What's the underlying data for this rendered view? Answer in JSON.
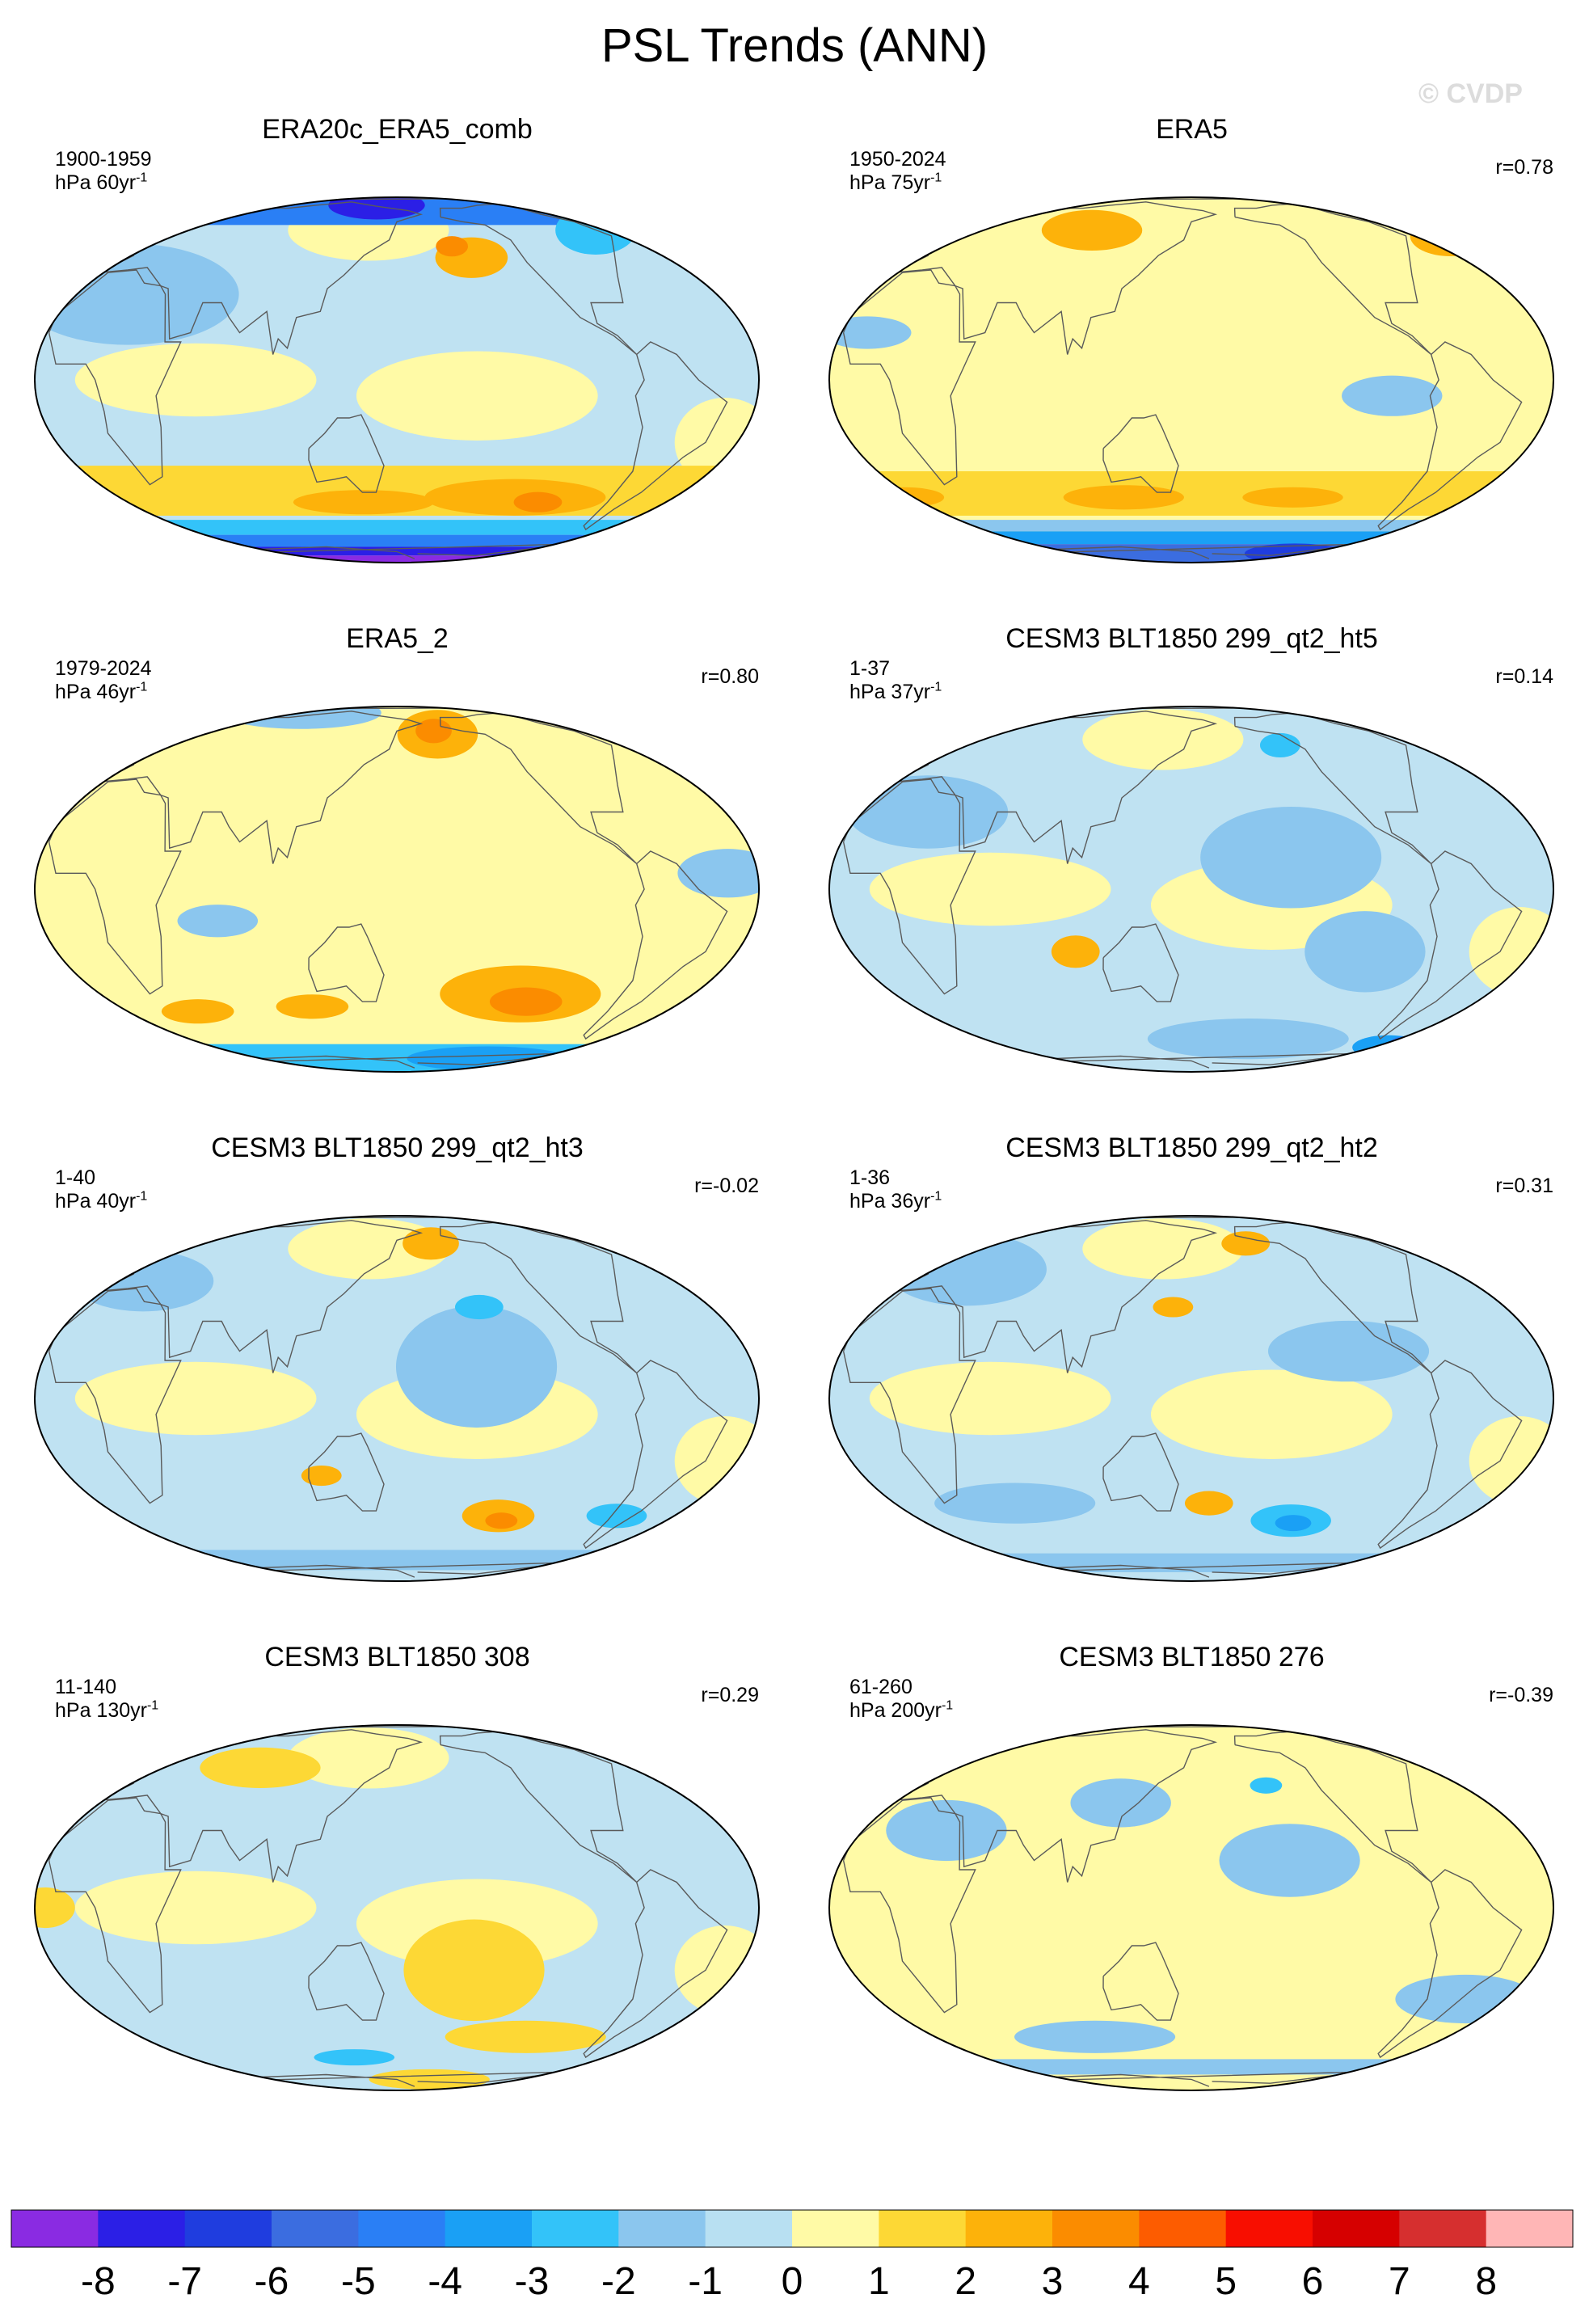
{
  "figure": {
    "title": "PSL Trends (ANN)",
    "watermark": "© CVDP"
  },
  "panels": [
    {
      "title": "ERA20c_ERA5_comb",
      "years": "1900-1959",
      "units": "hPa 60yr",
      "unit_exp": "-1",
      "corr": "",
      "dominant": "mixed",
      "features": [
        {
          "k": "blue_cap",
          "lat": [
            58,
            90
          ],
          "v": -4
        },
        {
          "k": "blob",
          "lon": 140,
          "lat": 73,
          "rx": 24,
          "ry": 7,
          "v": -7
        },
        {
          "k": "blob",
          "lon": -155,
          "lat": 42,
          "rx": 18,
          "ry": 10,
          "v": 2
        },
        {
          "k": "blob",
          "lon": -165,
          "lat": 47,
          "rx": 8,
          "ry": 5,
          "v": 3
        },
        {
          "k": "blob",
          "lon": 15,
          "lat": 28,
          "rx": 55,
          "ry": 25,
          "v": -1
        },
        {
          "k": "blob",
          "lon": -60,
          "lat": 55,
          "rx": 20,
          "ry": 12,
          "v": -2
        },
        {
          "k": "band",
          "lat": [
            -48,
            -28
          ],
          "v": 1
        },
        {
          "k": "blob",
          "lon": -130,
          "lat": -40,
          "rx": 45,
          "ry": 9,
          "v": 2
        },
        {
          "k": "blob",
          "lon": -115,
          "lat": -42,
          "rx": 12,
          "ry": 5,
          "v": 3
        },
        {
          "k": "blob",
          "lon": 140,
          "lat": -42,
          "rx": 35,
          "ry": 6,
          "v": 2
        },
        {
          "k": "band",
          "lat": [
            -58,
            -50
          ],
          "v": -2
        },
        {
          "k": "band",
          "lat": [
            -66,
            -58
          ],
          "v": -4
        },
        {
          "k": "band",
          "lat": [
            -74,
            -66
          ],
          "v": -7
        },
        {
          "k": "band",
          "lat": [
            -90,
            -74
          ],
          "v": -8
        }
      ]
    },
    {
      "title": "ERA5",
      "years": "1950-2024",
      "units": "hPa 75yr",
      "unit_exp": "-1",
      "corr": "r=0.78",
      "dominant": "yellow",
      "features": [
        {
          "k": "blob",
          "lon": 90,
          "lat": 55,
          "rx": 25,
          "ry": 10,
          "v": 2
        },
        {
          "k": "blob",
          "lon": -25,
          "lat": 52,
          "rx": 20,
          "ry": 10,
          "v": 2
        },
        {
          "k": "blob",
          "lon": -5,
          "lat": 15,
          "rx": 22,
          "ry": 8,
          "v": -1
        },
        {
          "k": "blob",
          "lon": -100,
          "lat": -5,
          "rx": 25,
          "ry": 10,
          "v": -1
        },
        {
          "k": "band",
          "lat": [
            -48,
            -30
          ],
          "v": 1
        },
        {
          "k": "blob",
          "lon": 120,
          "lat": -40,
          "rx": 30,
          "ry": 6,
          "v": 2
        },
        {
          "k": "blob",
          "lon": -140,
          "lat": -40,
          "rx": 25,
          "ry": 5,
          "v": 2
        },
        {
          "k": "blob",
          "lon": -10,
          "lat": -40,
          "rx": 20,
          "ry": 5,
          "v": 2
        },
        {
          "k": "band",
          "lat": [
            -56,
            -50
          ],
          "v": -1
        },
        {
          "k": "band",
          "lat": [
            -64,
            -56
          ],
          "v": -3
        },
        {
          "k": "band",
          "lat": [
            -90,
            -64
          ],
          "v": -5
        },
        {
          "k": "blob",
          "lon": -100,
          "lat": -72,
          "rx": 25,
          "ry": 5,
          "v": -6
        }
      ]
    },
    {
      "title": "ERA5_2",
      "years": "1979-2024",
      "units": "hPa 46yr",
      "unit_exp": "-1",
      "corr": "r=0.80",
      "dominant": "yellow",
      "features": [
        {
          "k": "blob",
          "lon": -170,
          "lat": 58,
          "rx": 20,
          "ry": 12,
          "v": 2
        },
        {
          "k": "blob",
          "lon": -172,
          "lat": 60,
          "rx": 9,
          "ry": 6,
          "v": 3
        },
        {
          "k": "blob",
          "lon": 60,
          "lat": 75,
          "rx": 40,
          "ry": 8,
          "v": -1
        },
        {
          "k": "blob",
          "lon": -35,
          "lat": 5,
          "rx": 25,
          "ry": 12,
          "v": -1
        },
        {
          "k": "blob",
          "lon": 70,
          "lat": -10,
          "rx": 20,
          "ry": 8,
          "v": -1
        },
        {
          "k": "blob",
          "lon": -130,
          "lat": -35,
          "rx": 40,
          "ry": 14,
          "v": 2
        },
        {
          "k": "blob",
          "lon": -125,
          "lat": -38,
          "rx": 18,
          "ry": 7,
          "v": 3
        },
        {
          "k": "blob",
          "lon": 110,
          "lat": -40,
          "rx": 18,
          "ry": 6,
          "v": 2
        },
        {
          "k": "blob",
          "lon": 40,
          "lat": -42,
          "rx": 18,
          "ry": 6,
          "v": 2
        },
        {
          "k": "band",
          "lat": [
            -90,
            -58
          ],
          "v": -2
        },
        {
          "k": "blob",
          "lon": -120,
          "lat": -68,
          "rx": 40,
          "ry": 6,
          "v": -3
        }
      ]
    },
    {
      "title": "CESM3 BLT1850 299_qt2_ht5",
      "years": "1-37",
      "units": "hPa 37yr",
      "unit_exp": "-1",
      "corr": "r=0.14",
      "dominant": "mixed",
      "features": [
        {
          "k": "blob",
          "lon": -150,
          "lat": 10,
          "rx": 45,
          "ry": 25,
          "v": -1
        },
        {
          "k": "blob",
          "lon": -110,
          "lat": -20,
          "rx": 30,
          "ry": 20,
          "v": -1
        },
        {
          "k": "blob",
          "lon": 20,
          "lat": 25,
          "rx": 40,
          "ry": 18,
          "v": -1
        },
        {
          "k": "blob",
          "lon": -140,
          "lat": 52,
          "rx": 10,
          "ry": 6,
          "v": -2
        },
        {
          "k": "blob",
          "lon": 100,
          "lat": -20,
          "rx": 12,
          "ry": 8,
          "v": 2
        },
        {
          "k": "blob",
          "lon": -160,
          "lat": -55,
          "rx": 50,
          "ry": 10,
          "v": -1
        },
        {
          "k": "blob",
          "lon": -50,
          "lat": -60,
          "rx": 18,
          "ry": 6,
          "v": -3
        },
        {
          "k": "blob",
          "lon": -40,
          "lat": -58,
          "rx": 10,
          "ry": 4,
          "v": -4
        }
      ]
    },
    {
      "title": "CESM3 BLT1850 299_qt2_ht3",
      "years": "1-40",
      "units": "hPa 40yr",
      "unit_exp": "-1",
      "corr": "r=-0.02",
      "dominant": "mixed",
      "features": [
        {
          "k": "blob",
          "lon": -160,
          "lat": 10,
          "rx": 40,
          "ry": 30,
          "v": -1
        },
        {
          "k": "blob",
          "lon": -155,
          "lat": 30,
          "rx": 12,
          "ry": 6,
          "v": -2
        },
        {
          "k": "blob",
          "lon": -175,
          "lat": 58,
          "rx": 14,
          "ry": 8,
          "v": 2
        },
        {
          "k": "blob",
          "lon": 10,
          "lat": 40,
          "rx": 35,
          "ry": 15,
          "v": -1
        },
        {
          "k": "blob",
          "lon": -140,
          "lat": -40,
          "rx": 18,
          "ry": 8,
          "v": 2
        },
        {
          "k": "blob",
          "lon": -137,
          "lat": -42,
          "rx": 8,
          "ry": 4,
          "v": 3
        },
        {
          "k": "blob",
          "lon": 120,
          "lat": -25,
          "rx": 10,
          "ry": 5,
          "v": 2
        },
        {
          "k": "blob",
          "lon": -70,
          "lat": -40,
          "rx": 15,
          "ry": 6,
          "v": -2
        },
        {
          "k": "band",
          "lat": [
            -70,
            -56
          ],
          "v": -1
        }
      ]
    },
    {
      "title": "CESM3 BLT1850 299_qt2_ht2",
      "years": "1-36",
      "units": "hPa 36yr",
      "unit_exp": "-1",
      "corr": "r=0.31",
      "dominant": "mixed",
      "features": [
        {
          "k": "blob",
          "lon": -120,
          "lat": 15,
          "rx": 40,
          "ry": 15,
          "v": -1
        },
        {
          "k": "blob",
          "lon": 20,
          "lat": 45,
          "rx": 40,
          "ry": 18,
          "v": -1
        },
        {
          "k": "blob",
          "lon": -160,
          "lat": 58,
          "rx": 12,
          "ry": 6,
          "v": 2
        },
        {
          "k": "blob",
          "lon": 150,
          "lat": 30,
          "rx": 10,
          "ry": 5,
          "v": 2
        },
        {
          "k": "blob",
          "lon": -140,
          "lat": -42,
          "rx": 20,
          "ry": 8,
          "v": -2
        },
        {
          "k": "blob",
          "lon": -138,
          "lat": -43,
          "rx": 9,
          "ry": 4,
          "v": -3
        },
        {
          "k": "blob",
          "lon": 170,
          "lat": -35,
          "rx": 12,
          "ry": 6,
          "v": 2
        },
        {
          "k": "blob",
          "lon": 60,
          "lat": -35,
          "rx": 40,
          "ry": 10,
          "v": -1
        },
        {
          "k": "band",
          "lat": [
            -72,
            -58
          ],
          "v": -1
        }
      ]
    },
    {
      "title": "CESM3 BLT1850 308",
      "years": "11-140",
      "units": "hPa 130yr",
      "unit_exp": "-1",
      "corr": "r=0.29",
      "dominant": "mixed",
      "features": [
        {
          "k": "blob",
          "lon": -160,
          "lat": -20,
          "rx": 35,
          "ry": 25,
          "v": 1
        },
        {
          "k": "blob",
          "lon": -120,
          "lat": -45,
          "rx": 40,
          "ry": 8,
          "v": 1
        },
        {
          "k": "blob",
          "lon": 70,
          "lat": 50,
          "rx": 30,
          "ry": 10,
          "v": 1
        },
        {
          "k": "blob",
          "lon": -15,
          "lat": 0,
          "rx": 15,
          "ry": 10,
          "v": 1
        },
        {
          "k": "blob",
          "lon": 130,
          "lat": -55,
          "rx": 20,
          "ry": 4,
          "v": -2
        },
        {
          "k": "blob",
          "lon": -170,
          "lat": -70,
          "rx": 30,
          "ry": 5,
          "v": 1
        }
      ]
    },
    {
      "title": "CESM3 BLT1850 276",
      "years": "61-260",
      "units": "hPa 200yr",
      "unit_exp": "-1",
      "corr": "r=-0.39",
      "dominant": "yellow",
      "features": [
        {
          "k": "blob",
          "lon": -150,
          "lat": 15,
          "rx": 35,
          "ry": 18,
          "v": -1
        },
        {
          "k": "blob",
          "lon": 120,
          "lat": 35,
          "rx": 25,
          "ry": 12,
          "v": -1
        },
        {
          "k": "blob",
          "lon": 30,
          "lat": 25,
          "rx": 30,
          "ry": 15,
          "v": -1
        },
        {
          "k": "blob",
          "lon": -50,
          "lat": -30,
          "rx": 35,
          "ry": 12,
          "v": -1
        },
        {
          "k": "blob",
          "lon": 100,
          "lat": -45,
          "rx": 40,
          "ry": 8,
          "v": -1
        },
        {
          "k": "blob",
          "lon": -155,
          "lat": 42,
          "rx": 8,
          "ry": 4,
          "v": -2
        },
        {
          "k": "band",
          "lat": [
            -66,
            -56
          ],
          "v": -1
        }
      ]
    }
  ],
  "colorbar": {
    "colors": [
      "#8a2be2",
      "#2b1fe6",
      "#1f3ddf",
      "#3b6de0",
      "#2a7ff5",
      "#1aa0f5",
      "#33c3f9",
      "#8bc6ee",
      "#b8e0f2",
      "#fffaa6",
      "#fdd835",
      "#fdb20a",
      "#fb8c00",
      "#fd5c00",
      "#f80e00",
      "#d60000",
      "#d62f2f",
      "#ffb6b6"
    ],
    "labels": [
      "-8",
      "-7",
      "-6",
      "-5",
      "-4",
      "-3",
      "-2",
      "-1",
      "0",
      "1",
      "2",
      "3",
      "4",
      "5",
      "6",
      "7",
      "8"
    ]
  }
}
